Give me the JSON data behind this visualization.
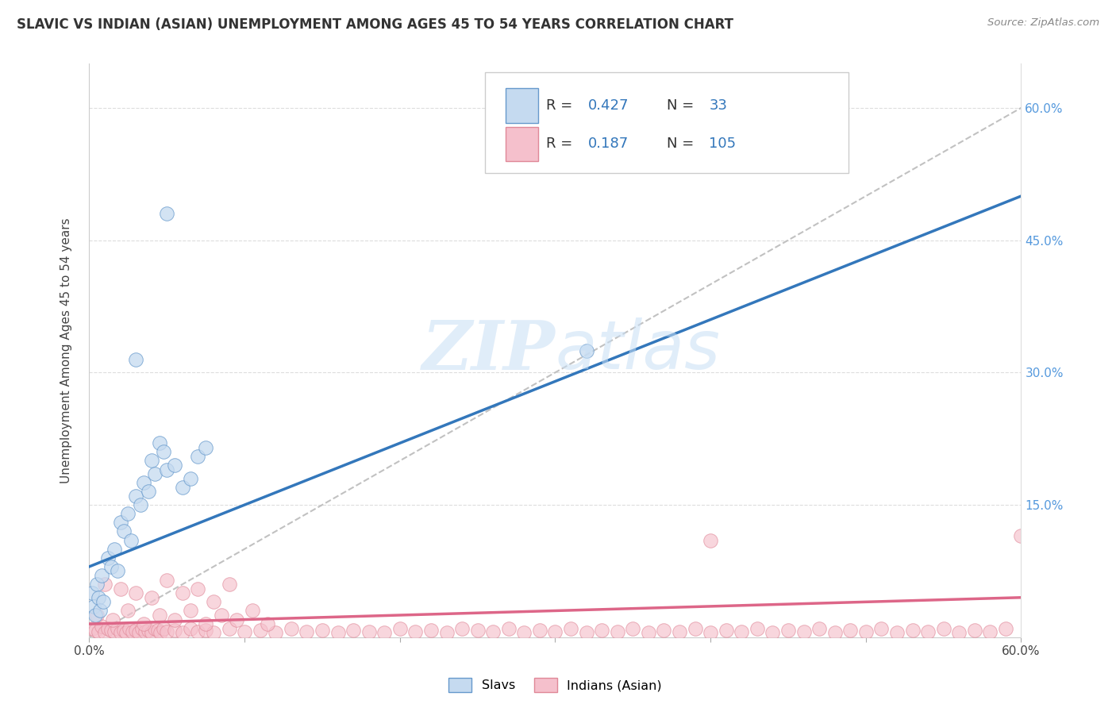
{
  "title": "SLAVIC VS INDIAN (ASIAN) UNEMPLOYMENT AMONG AGES 45 TO 54 YEARS CORRELATION CHART",
  "source": "Source: ZipAtlas.com",
  "ylabel": "Unemployment Among Ages 45 to 54 years",
  "xlim": [
    0.0,
    0.6
  ],
  "ylim": [
    0.0,
    0.65
  ],
  "slavs_R": "0.427",
  "slavs_N": "33",
  "indians_R": "0.187",
  "indians_N": "105",
  "slavs_face_color": "#c5daf0",
  "slavs_edge_color": "#6699cc",
  "indians_face_color": "#f5c0cc",
  "indians_edge_color": "#e08898",
  "slavs_line_color": "#3377bb",
  "indians_line_color": "#dd6688",
  "ref_line_color": "#bbbbbb",
  "grid_color": "#dddddd",
  "right_tick_color": "#5599dd",
  "watermark_color": "#c8dff5",
  "slavs_x": [
    0.002,
    0.003,
    0.004,
    0.005,
    0.006,
    0.007,
    0.008,
    0.009,
    0.012,
    0.014,
    0.016,
    0.018,
    0.02,
    0.022,
    0.025,
    0.027,
    0.03,
    0.033,
    0.035,
    0.038,
    0.04,
    0.042,
    0.045,
    0.048,
    0.05,
    0.055,
    0.06,
    0.065,
    0.07,
    0.075,
    0.05,
    0.03,
    0.32
  ],
  "slavs_y": [
    0.05,
    0.035,
    0.025,
    0.06,
    0.045,
    0.03,
    0.07,
    0.04,
    0.09,
    0.08,
    0.1,
    0.075,
    0.13,
    0.12,
    0.14,
    0.11,
    0.16,
    0.15,
    0.175,
    0.165,
    0.2,
    0.185,
    0.22,
    0.21,
    0.19,
    0.195,
    0.17,
    0.18,
    0.205,
    0.215,
    0.48,
    0.315,
    0.325
  ],
  "indians_x": [
    0.002,
    0.004,
    0.006,
    0.008,
    0.01,
    0.012,
    0.014,
    0.016,
    0.018,
    0.02,
    0.022,
    0.024,
    0.026,
    0.028,
    0.03,
    0.032,
    0.034,
    0.036,
    0.038,
    0.04,
    0.042,
    0.044,
    0.046,
    0.048,
    0.05,
    0.055,
    0.06,
    0.065,
    0.07,
    0.075,
    0.08,
    0.09,
    0.1,
    0.11,
    0.12,
    0.13,
    0.14,
    0.15,
    0.16,
    0.17,
    0.18,
    0.19,
    0.2,
    0.21,
    0.22,
    0.23,
    0.24,
    0.25,
    0.26,
    0.27,
    0.28,
    0.29,
    0.3,
    0.31,
    0.32,
    0.33,
    0.34,
    0.35,
    0.36,
    0.37,
    0.38,
    0.39,
    0.4,
    0.41,
    0.42,
    0.43,
    0.44,
    0.45,
    0.46,
    0.47,
    0.48,
    0.49,
    0.5,
    0.51,
    0.52,
    0.53,
    0.54,
    0.55,
    0.56,
    0.57,
    0.58,
    0.59,
    0.6,
    0.005,
    0.015,
    0.025,
    0.035,
    0.045,
    0.055,
    0.065,
    0.075,
    0.085,
    0.095,
    0.105,
    0.115,
    0.01,
    0.02,
    0.03,
    0.04,
    0.05,
    0.06,
    0.07,
    0.08,
    0.09,
    0.4
  ],
  "indians_y": [
    0.01,
    0.008,
    0.006,
    0.012,
    0.005,
    0.01,
    0.008,
    0.006,
    0.01,
    0.005,
    0.008,
    0.005,
    0.01,
    0.006,
    0.008,
    0.005,
    0.01,
    0.006,
    0.008,
    0.005,
    0.01,
    0.008,
    0.005,
    0.01,
    0.006,
    0.008,
    0.005,
    0.01,
    0.006,
    0.008,
    0.005,
    0.01,
    0.006,
    0.008,
    0.005,
    0.01,
    0.006,
    0.008,
    0.005,
    0.008,
    0.006,
    0.005,
    0.01,
    0.006,
    0.008,
    0.005,
    0.01,
    0.008,
    0.006,
    0.01,
    0.005,
    0.008,
    0.006,
    0.01,
    0.005,
    0.008,
    0.006,
    0.01,
    0.005,
    0.008,
    0.006,
    0.01,
    0.005,
    0.008,
    0.006,
    0.01,
    0.005,
    0.008,
    0.006,
    0.01,
    0.005,
    0.008,
    0.006,
    0.01,
    0.005,
    0.008,
    0.006,
    0.01,
    0.005,
    0.008,
    0.006,
    0.01,
    0.115,
    0.025,
    0.02,
    0.03,
    0.015,
    0.025,
    0.02,
    0.03,
    0.015,
    0.025,
    0.02,
    0.03,
    0.015,
    0.06,
    0.055,
    0.05,
    0.045,
    0.065,
    0.05,
    0.055,
    0.04,
    0.06,
    0.11
  ]
}
